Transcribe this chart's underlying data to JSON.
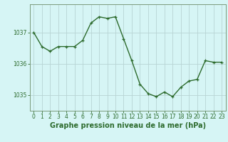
{
  "hours": [
    0,
    1,
    2,
    3,
    4,
    5,
    6,
    7,
    8,
    9,
    10,
    11,
    12,
    13,
    14,
    15,
    16,
    17,
    18,
    19,
    20,
    21,
    22,
    23
  ],
  "pressure": [
    1037.0,
    1036.55,
    1036.4,
    1036.55,
    1036.55,
    1036.55,
    1036.75,
    1037.3,
    1037.5,
    1037.45,
    1037.5,
    1036.8,
    1036.1,
    1035.35,
    1035.05,
    1034.95,
    1035.1,
    1034.95,
    1035.25,
    1035.45,
    1035.5,
    1036.1,
    1036.05,
    1036.05
  ],
  "line_color": "#2d6b2d",
  "marker": "+",
  "bg_color": "#d6f5f5",
  "grid_color": "#b8d4d4",
  "ylabel_ticks": [
    1035,
    1036,
    1037
  ],
  "xtick_labels": [
    "0",
    "1",
    "2",
    "3",
    "4",
    "5",
    "6",
    "7",
    "8",
    "9",
    "10",
    "11",
    "12",
    "13",
    "14",
    "15",
    "16",
    "17",
    "18",
    "19",
    "20",
    "21",
    "22",
    "23"
  ],
  "xlabel": "Graphe pression niveau de la mer (hPa)",
  "ylim": [
    1034.5,
    1037.9
  ],
  "xlim": [
    -0.5,
    23.5
  ],
  "tick_fontsize": 5.5,
  "label_fontsize": 7.0,
  "linewidth": 1.0,
  "markersize": 3.5
}
